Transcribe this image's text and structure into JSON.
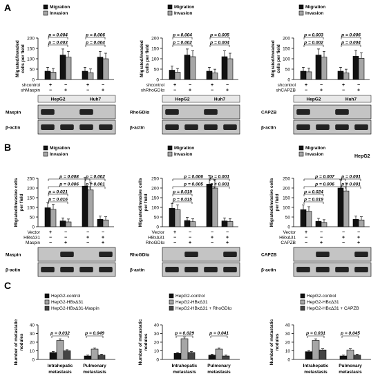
{
  "section_letters": [
    "A",
    "B",
    "C"
  ],
  "row_a": [
    {
      "legend": [
        "Migration",
        "Invasion"
      ],
      "ylabel": [
        "Migrated/invaded",
        "cells per field"
      ],
      "ytick_labels": [
        "0",
        "50",
        "100",
        "150",
        "200"
      ],
      "ylim": [
        0,
        200
      ],
      "groups": [
        [
          40,
          35
        ],
        [
          118,
          108
        ],
        [
          40,
          33
        ],
        [
          108,
          100
        ]
      ],
      "pvals": [
        {
          "text": "p = 0.003",
          "a": 0,
          "b": 1,
          "level": 1
        },
        {
          "text": "p = 0.004",
          "a": 0,
          "b": 1,
          "level": 2
        },
        {
          "text": "p = 0.004",
          "a": 2,
          "b": 3,
          "level": 1
        },
        {
          "text": "p = 0.006",
          "a": 2,
          "b": 3,
          "level": 2
        }
      ],
      "treat_rows": [
        {
          "label": "shcontrol",
          "signs": [
            "+",
            "−",
            "+",
            "−"
          ]
        },
        {
          "label": "shMaspin",
          "signs": [
            "−",
            "+",
            "−",
            "+"
          ]
        }
      ],
      "cells": [
        "HepG2",
        "Huh7"
      ],
      "blots": [
        "Maspin",
        "β-actin"
      ]
    },
    {
      "legend": [
        "Migration",
        "Invasion"
      ],
      "ylabel": [
        "Migrated/invaded",
        "cells per field"
      ],
      "ytick_labels": [
        "0",
        "50",
        "100",
        "150",
        "200"
      ],
      "ylim": [
        0,
        200
      ],
      "groups": [
        [
          45,
          35
        ],
        [
          118,
          110
        ],
        [
          40,
          32
        ],
        [
          110,
          100
        ]
      ],
      "pvals": [
        {
          "text": "p = 0.002",
          "a": 0,
          "b": 1,
          "level": 1
        },
        {
          "text": "p = 0.004",
          "a": 0,
          "b": 1,
          "level": 2
        },
        {
          "text": "p = 0.004",
          "a": 2,
          "b": 3,
          "level": 1
        },
        {
          "text": "p = 0.005",
          "a": 2,
          "b": 3,
          "level": 2
        }
      ],
      "treat_rows": [
        {
          "label": "shcontrol",
          "signs": [
            "+",
            "−",
            "+",
            "−"
          ]
        },
        {
          "label": "shRhoGDIα",
          "signs": [
            "−",
            "+",
            "−",
            "+"
          ]
        }
      ],
      "cells": [
        "HepG2",
        "Huh7"
      ],
      "blots": [
        "RhoGDIα",
        "β-actin"
      ]
    },
    {
      "legend": [
        "Migration",
        "Invasion"
      ],
      "ylabel": [
        "Migrated/invaded",
        "cells per field"
      ],
      "ytick_labels": [
        "0",
        "50",
        "100",
        "150",
        "200"
      ],
      "ylim": [
        0,
        200
      ],
      "groups": [
        [
          40,
          37
        ],
        [
          118,
          108
        ],
        [
          40,
          32
        ],
        [
          112,
          102
        ]
      ],
      "pvals": [
        {
          "text": "p = 0.002",
          "a": 0,
          "b": 1,
          "level": 1
        },
        {
          "text": "p = 0.003",
          "a": 0,
          "b": 1,
          "level": 2
        },
        {
          "text": "p = 0.004",
          "a": 2,
          "b": 3,
          "level": 1
        },
        {
          "text": "p = 0.006",
          "a": 2,
          "b": 3,
          "level": 2
        }
      ],
      "treat_rows": [
        {
          "label": "shcontrol",
          "signs": [
            "+",
            "−",
            "+",
            "−"
          ]
        },
        {
          "label": "shCAPZB",
          "signs": [
            "−",
            "+",
            "−",
            "+"
          ]
        }
      ],
      "cells": [
        "HepG2",
        "Huh7"
      ],
      "blots": [
        "CAPZB",
        "β-actin"
      ]
    }
  ],
  "row_b": [
    {
      "legend": [
        "Migration",
        "Invasion"
      ],
      "tag": "",
      "ylabel": [
        "Migrated/invasive cells",
        "per field"
      ],
      "ytick_labels": [
        "0",
        "50",
        "100",
        "150",
        "200",
        "250"
      ],
      "ylim": [
        0,
        250
      ],
      "groups": [
        [
          98,
          90
        ],
        [
          30,
          25
        ],
        [
          210,
          190
        ],
        [
          38,
          35
        ]
      ],
      "pvals": [
        {
          "text": "p = 0.016",
          "a": 0,
          "b": 1,
          "level": 1
        },
        {
          "text": "p = 0.021",
          "a": 0,
          "b": 1,
          "level": 2
        },
        {
          "text": "p = 0.006",
          "a": 0,
          "b": 2,
          "level": 3
        },
        {
          "text": "p = 0.008",
          "a": 0,
          "b": 2,
          "level": 4
        },
        {
          "text": "p = 0.001",
          "a": 2,
          "b": 3,
          "level": 3
        },
        {
          "text": "p = 0.002",
          "a": 2,
          "b": 3,
          "level": 4
        }
      ],
      "treat_rows": [
        {
          "label": "Vector",
          "signs": [
            "+",
            "−",
            "−",
            "−"
          ]
        },
        {
          "label": "HBxΔ31",
          "signs": [
            "−",
            "−",
            "+",
            "+"
          ]
        },
        {
          "label": "Maspin",
          "signs": [
            "−",
            "+",
            "−",
            "+"
          ]
        }
      ],
      "blots": [
        "Maspin",
        "β-actin"
      ]
    },
    {
      "legend": [
        "Migration",
        "Invasion"
      ],
      "tag": "",
      "ylabel": [
        "Migrated/invasive cells",
        "per field"
      ],
      "ytick_labels": [
        "0",
        "50",
        "100",
        "150",
        "200",
        "250"
      ],
      "ylim": [
        0,
        250
      ],
      "groups": [
        [
          95,
          88
        ],
        [
          32,
          26
        ],
        [
          220,
          200
        ],
        [
          30,
          27
        ]
      ],
      "pvals": [
        {
          "text": "p = 0.015",
          "a": 0,
          "b": 1,
          "level": 1
        },
        {
          "text": "p = 0.019",
          "a": 0,
          "b": 1,
          "level": 2
        },
        {
          "text": "p = 0.005",
          "a": 0,
          "b": 2,
          "level": 3
        },
        {
          "text": "p = 0.006",
          "a": 0,
          "b": 2,
          "level": 4
        },
        {
          "text": "p < 0.001",
          "a": 2,
          "b": 3,
          "level": 3
        },
        {
          "text": "p = 0.001",
          "a": 2,
          "b": 3,
          "level": 4
        }
      ],
      "treat_rows": [
        {
          "label": "Vector",
          "signs": [
            "+",
            "−",
            "−",
            "−"
          ]
        },
        {
          "label": "HBxΔ31",
          "signs": [
            "−",
            "−",
            "+",
            "+"
          ]
        },
        {
          "label": "RhoGDIα",
          "signs": [
            "−",
            "+",
            "−",
            "+"
          ]
        }
      ],
      "blots": [
        "RhoGDIα",
        "β-actin"
      ]
    },
    {
      "legend": [
        "Migration",
        "Invasion"
      ],
      "tag": "HepG2",
      "ylabel": [
        "Migrated/invasive cells",
        "per field"
      ],
      "ytick_labels": [
        "0",
        "50",
        "100",
        "150",
        "200",
        "250"
      ],
      "ylim": [
        0,
        250
      ],
      "groups": [
        [
          88,
          80
        ],
        [
          28,
          22
        ],
        [
          200,
          185
        ],
        [
          38,
          35
        ]
      ],
      "pvals": [
        {
          "text": "p = 0.019",
          "a": 0,
          "b": 1,
          "level": 1
        },
        {
          "text": "p = 0.024",
          "a": 0,
          "b": 1,
          "level": 2
        },
        {
          "text": "p = 0.006",
          "a": 0,
          "b": 2,
          "level": 3
        },
        {
          "text": "p = 0.007",
          "a": 0,
          "b": 2,
          "level": 4
        },
        {
          "text": "p < 0.001",
          "a": 2,
          "b": 3,
          "level": 3
        },
        {
          "text": "p = 0.001",
          "a": 2,
          "b": 3,
          "level": 4
        }
      ],
      "treat_rows": [
        {
          "label": "Vector",
          "signs": [
            "+",
            "−",
            "−",
            "−"
          ]
        },
        {
          "label": "HBxΔ31",
          "signs": [
            "−",
            "−",
            "+",
            "+"
          ]
        },
        {
          "label": "CAPZB",
          "signs": [
            "−",
            "+",
            "−",
            "+"
          ]
        }
      ],
      "blots": [
        "CAPZB",
        "β-actin"
      ]
    }
  ],
  "row_c": [
    {
      "legend": [
        "HepG2-control",
        "HepG2-HBxΔ31",
        "HepG2-HBxΔ31-Maspin"
      ],
      "ylabel": [
        "Number of metastatic",
        "nodules"
      ],
      "ytick_labels": [
        "0",
        "10",
        "20",
        "30",
        "40"
      ],
      "ylim": [
        0,
        40
      ],
      "categories": [
        [
          "Intrahepatic",
          "metastasis"
        ],
        [
          "Pulmonary",
          "metastasis"
        ]
      ],
      "groups": [
        [
          8,
          22,
          10
        ],
        [
          4,
          12,
          5
        ]
      ],
      "pvals": [
        {
          "text": "p = 0.032",
          "group": 0
        },
        {
          "text": "p = 0.049",
          "group": 1
        }
      ]
    },
    {
      "legend": [
        "HepG2-control",
        "HepG2-HBxΔ31",
        "HepG2-HBxΔ31 + RhoGDIα"
      ],
      "ylabel": [
        "Number of metastatic",
        "nodules"
      ],
      "ytick_labels": [
        "0",
        "10",
        "20",
        "30",
        "40"
      ],
      "ylim": [
        0,
        40
      ],
      "categories": [
        [
          "Intrahepatic",
          "metastasis"
        ],
        [
          "Pulmonary",
          "metastasis"
        ]
      ],
      "groups": [
        [
          7,
          24,
          8
        ],
        [
          5,
          12,
          4
        ]
      ],
      "pvals": [
        {
          "text": "p = 0.029",
          "group": 0
        },
        {
          "text": "p = 0.041",
          "group": 1
        }
      ]
    },
    {
      "legend": [
        "HepG2-control",
        "HepG2-HBxΔ31",
        "HepG2-HBxΔ31 + CAPZB"
      ],
      "ylabel": [
        "Number of metastatic",
        "nodules"
      ],
      "ytick_labels": [
        "0",
        "10",
        "20",
        "30",
        "40"
      ],
      "ylim": [
        0,
        40
      ],
      "categories": [
        [
          "Intrahepatic",
          "metastasis"
        ],
        [
          "Pulmonary",
          "metastasis"
        ]
      ],
      "groups": [
        [
          9,
          22,
          11
        ],
        [
          4,
          11,
          5
        ]
      ],
      "pvals": [
        {
          "text": "p = 0.031",
          "group": 0
        },
        {
          "text": "p = 0.045",
          "group": 1
        }
      ]
    }
  ],
  "colors": {
    "bar_dark": "#111111",
    "bar_light": "#a6a6a6",
    "bar_white": "#ffffff",
    "blot_bg": "#c4c4c4",
    "band": "#222222",
    "frame": "#000000"
  },
  "chart_data": [
    {
      "type": "bar",
      "categories": [
        "shcontrol HepG2",
        "shMaspin HepG2",
        "shcontrol Huh7",
        "shMaspin Huh7"
      ],
      "ylabel": "Migrated/invaded cells per field",
      "ylim": [
        0,
        200
      ],
      "series": [
        {
          "name": "Migration",
          "values": [
            40,
            118,
            40,
            108
          ]
        },
        {
          "name": "Invasion",
          "values": [
            35,
            108,
            33,
            100
          ]
        }
      ]
    },
    {
      "type": "bar",
      "categories": [
        "shcontrol HepG2",
        "shRhoGDIα HepG2",
        "shcontrol Huh7",
        "shRhoGDIα Huh7"
      ],
      "ylabel": "Migrated/invaded cells per field",
      "ylim": [
        0,
        200
      ],
      "series": [
        {
          "name": "Migration",
          "values": [
            45,
            118,
            40,
            110
          ]
        },
        {
          "name": "Invasion",
          "values": [
            35,
            110,
            32,
            100
          ]
        }
      ]
    },
    {
      "type": "bar",
      "categories": [
        "shcontrol HepG2",
        "shCAPZB HepG2",
        "shcontrol Huh7",
        "shCAPZB Huh7"
      ],
      "ylabel": "Migrated/invaded cells per field",
      "ylim": [
        0,
        200
      ],
      "series": [
        {
          "name": "Migration",
          "values": [
            40,
            118,
            40,
            112
          ]
        },
        {
          "name": "Invasion",
          "values": [
            37,
            108,
            32,
            102
          ]
        }
      ]
    },
    {
      "type": "bar",
      "categories": [
        "Vector",
        "Maspin",
        "HBxΔ31",
        "HBxΔ31 + Maspin"
      ],
      "ylabel": "Migrated/invasive cells per field",
      "ylim": [
        0,
        250
      ],
      "series": [
        {
          "name": "Migration",
          "values": [
            98,
            30,
            210,
            38
          ]
        },
        {
          "name": "Invasion",
          "values": [
            90,
            25,
            190,
            35
          ]
        }
      ]
    },
    {
      "type": "bar",
      "categories": [
        "Vector",
        "RhoGDIα",
        "HBxΔ31",
        "HBxΔ31 + RhoGDIα"
      ],
      "ylabel": "Migrated/invasive cells per field",
      "ylim": [
        0,
        250
      ],
      "series": [
        {
          "name": "Migration",
          "values": [
            95,
            32,
            220,
            30
          ]
        },
        {
          "name": "Invasion",
          "values": [
            88,
            26,
            200,
            27
          ]
        }
      ]
    },
    {
      "type": "bar",
      "categories": [
        "Vector",
        "CAPZB",
        "HBxΔ31",
        "HBxΔ31 + CAPZB"
      ],
      "ylabel": "Migrated/invasive cells per field",
      "ylim": [
        0,
        250
      ],
      "series": [
        {
          "name": "Migration",
          "values": [
            88,
            28,
            200,
            38
          ]
        },
        {
          "name": "Invasion",
          "values": [
            80,
            22,
            185,
            35
          ]
        }
      ]
    },
    {
      "type": "bar",
      "categories": [
        "Intrahepatic metastasis",
        "Pulmonary metastasis"
      ],
      "ylabel": "Number of metastatic nodules",
      "ylim": [
        0,
        40
      ],
      "series": [
        {
          "name": "HepG2-control",
          "values": [
            8,
            4
          ]
        },
        {
          "name": "HepG2-HBxΔ31",
          "values": [
            22,
            12
          ]
        },
        {
          "name": "HepG2-HBxΔ31-Maspin",
          "values": [
            10,
            5
          ]
        }
      ]
    },
    {
      "type": "bar",
      "categories": [
        "Intrahepatic metastasis",
        "Pulmonary metastasis"
      ],
      "ylabel": "Number of metastatic nodules",
      "ylim": [
        0,
        40
      ],
      "series": [
        {
          "name": "HepG2-control",
          "values": [
            7,
            5
          ]
        },
        {
          "name": "HepG2-HBxΔ31",
          "values": [
            24,
            12
          ]
        },
        {
          "name": "HepG2-HBxΔ31 + RhoGDIα",
          "values": [
            8,
            4
          ]
        }
      ]
    },
    {
      "type": "bar",
      "categories": [
        "Intrahepatic metastasis",
        "Pulmonary metastasis"
      ],
      "ylabel": "Number of metastatic nodules",
      "ylim": [
        0,
        40
      ],
      "series": [
        {
          "name": "HepG2-control",
          "values": [
            9,
            4
          ]
        },
        {
          "name": "HepG2-HBxΔ31",
          "values": [
            22,
            11
          ]
        },
        {
          "name": "HepG2-HBxΔ31 + CAPZB",
          "values": [
            11,
            5
          ]
        }
      ]
    }
  ]
}
